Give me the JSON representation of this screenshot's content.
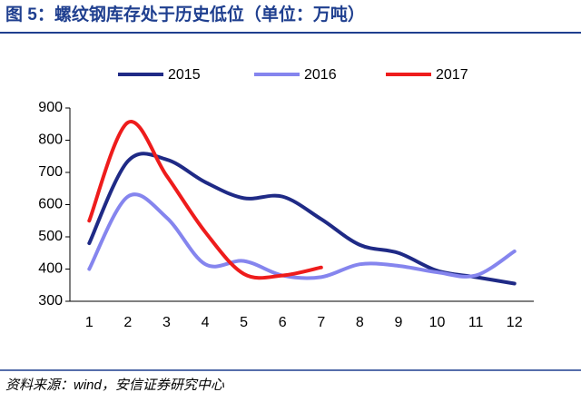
{
  "chart_data": {
    "type": "line",
    "title": "图 5：螺纹钢库存处于历史低位（单位：万吨）",
    "source": "资料来源：wind，安信证券研究中心",
    "categories": [
      "1",
      "2",
      "3",
      "4",
      "5",
      "6",
      "7",
      "8",
      "9",
      "10",
      "11",
      "12"
    ],
    "series": [
      {
        "name": "2015",
        "color": "#1f2a86",
        "values": [
          480,
          735,
          740,
          670,
          620,
          625,
          555,
          475,
          450,
          395,
          375,
          355
        ]
      },
      {
        "name": "2016",
        "color": "#8585ee",
        "values": [
          400,
          625,
          560,
          415,
          425,
          380,
          375,
          415,
          410,
          390,
          380,
          455
        ]
      },
      {
        "name": "2017",
        "color": "#ee1c1c",
        "values": [
          550,
          855,
          690,
          515,
          385,
          380,
          405,
          null,
          null,
          null,
          null,
          null
        ]
      }
    ],
    "ylim": [
      300,
      900
    ],
    "yticks": [
      300,
      400,
      500,
      600,
      700,
      800,
      900
    ],
    "smooth": true
  }
}
